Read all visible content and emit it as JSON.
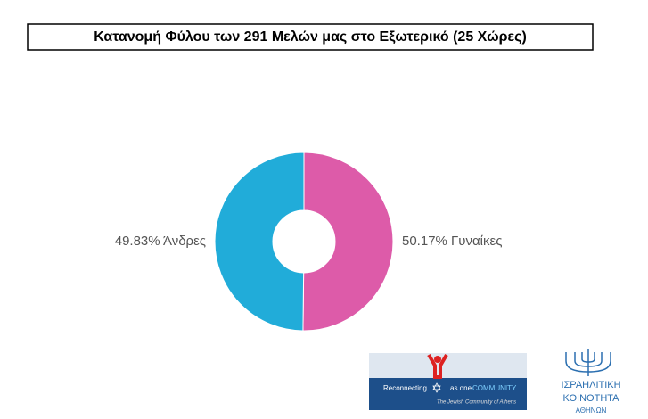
{
  "chart_data": {
    "type": "donut",
    "title": "Κατανομή Φύλου των 291 Μελών μας στο Εξωτερικό (25 Χώρες)",
    "values": [
      50.17,
      49.83
    ],
    "value_labels": [
      "50.17% Γυναίκες",
      "49.83% Άνδρες"
    ],
    "colors": [
      "#dd5ba9",
      "#21acd9"
    ]
  },
  "footer": {
    "banner_text": "Reconnecting",
    "banner_text_2": "as one",
    "banner_text_3": "COMMUNITY",
    "banner_subtitle": "The Jewish Community of Athens",
    "logo_line_1": "ΙΣΡΑΗΛΙΤΙΚΗ",
    "logo_line_2": "ΚΟΙΝΟΤΗΤΑ",
    "logo_line_3": "ΑΘΗΝΩΝ"
  }
}
